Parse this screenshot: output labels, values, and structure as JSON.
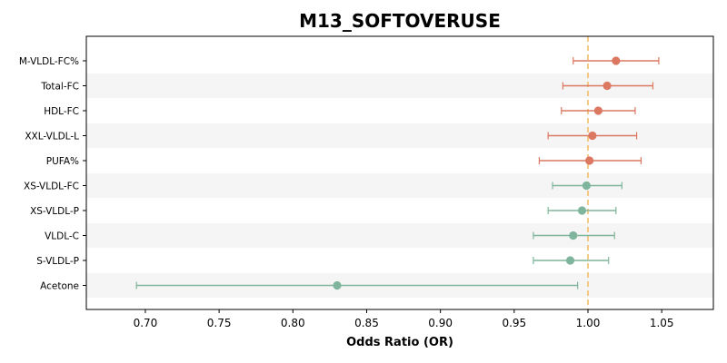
{
  "chart_data": {
    "type": "forest",
    "title": "M13_SOFTOVERUSE",
    "xlabel": "Odds Ratio (OR)",
    "xlim": [
      0.66,
      1.085
    ],
    "xticks": [
      0.7,
      0.75,
      0.8,
      0.85,
      0.9,
      0.95,
      1.0,
      1.05
    ],
    "xtick_labels": [
      "0.70",
      "0.75",
      "0.80",
      "0.85",
      "0.90",
      "0.95",
      "1.00",
      "1.05"
    ],
    "reference_line": 1.0,
    "grid": false,
    "colors": {
      "positive": "#dc7861",
      "negative": "#7fb59c",
      "reference": "#f5c47a",
      "band": "#f5f5f5"
    },
    "rows": [
      {
        "label": "M-VLDL-FC%",
        "or": 1.019,
        "lo": 0.99,
        "hi": 1.048,
        "group": "positive"
      },
      {
        "label": "Total-FC",
        "or": 1.013,
        "lo": 0.983,
        "hi": 1.044,
        "group": "positive"
      },
      {
        "label": "HDL-FC",
        "or": 1.007,
        "lo": 0.982,
        "hi": 1.032,
        "group": "positive"
      },
      {
        "label": "XXL-VLDL-L",
        "or": 1.003,
        "lo": 0.973,
        "hi": 1.033,
        "group": "positive"
      },
      {
        "label": "PUFA%",
        "or": 1.001,
        "lo": 0.967,
        "hi": 1.036,
        "group": "positive"
      },
      {
        "label": "XS-VLDL-FC",
        "or": 0.999,
        "lo": 0.976,
        "hi": 1.023,
        "group": "negative"
      },
      {
        "label": "XS-VLDL-P",
        "or": 0.996,
        "lo": 0.973,
        "hi": 1.019,
        "group": "negative"
      },
      {
        "label": "VLDL-C",
        "or": 0.99,
        "lo": 0.963,
        "hi": 1.018,
        "group": "negative"
      },
      {
        "label": "S-VLDL-P",
        "or": 0.988,
        "lo": 0.963,
        "hi": 1.014,
        "group": "negative"
      },
      {
        "label": "Acetone",
        "or": 0.83,
        "lo": 0.694,
        "hi": 0.993,
        "group": "negative"
      }
    ]
  }
}
